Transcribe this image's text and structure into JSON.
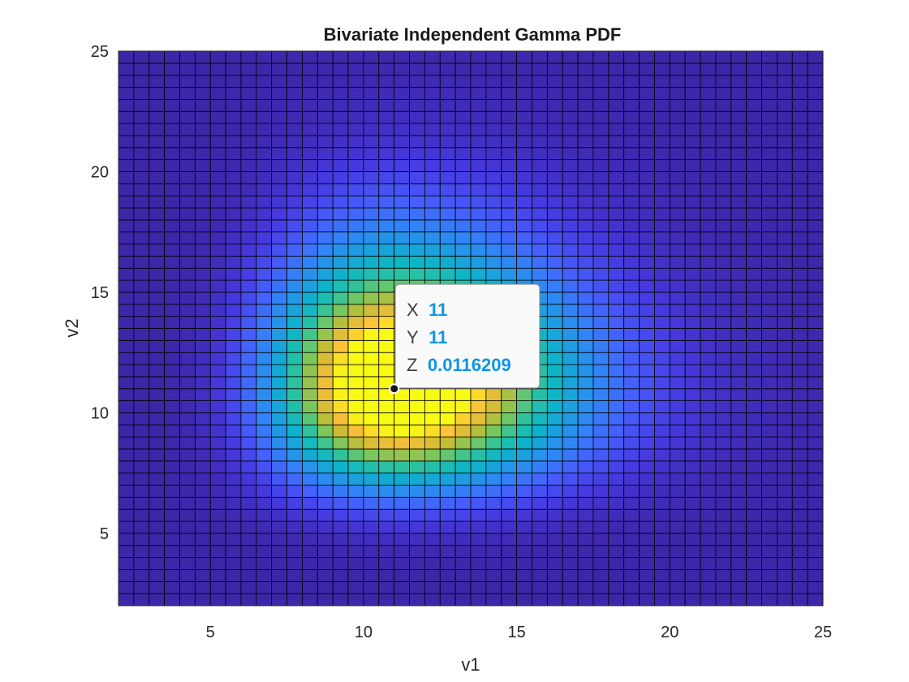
{
  "chart_data": {
    "type": "heatmap",
    "title": "Bivariate Independent Gamma PDF",
    "xlabel": "v1",
    "ylabel": "v2",
    "xlim": [
      2,
      25
    ],
    "ylim": [
      2,
      25
    ],
    "x_ticks": [
      5,
      10,
      15,
      20,
      25
    ],
    "y_ticks": [
      5,
      10,
      15,
      20,
      25
    ],
    "grid_step": 0.5,
    "distribution": {
      "v1_shape": 12,
      "v1_scale": 1,
      "v2_shape": 12,
      "v2_scale": 1
    },
    "colormap": "parula",
    "color_range": [
      0,
      0.0116209
    ],
    "datatip": {
      "x_key": "X",
      "x_value": "11",
      "y_key": "Y",
      "y_value": "11",
      "z_key": "Z",
      "z_value": "0.0116209",
      "point": [
        11,
        11
      ]
    }
  },
  "colors": {
    "accent": "#0f95e6",
    "edge": "#000000",
    "tip_border": "#8c8c8c"
  }
}
